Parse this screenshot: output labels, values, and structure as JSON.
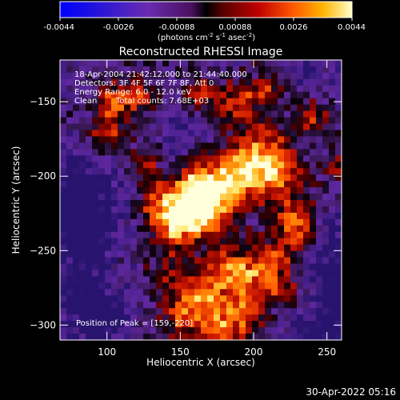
{
  "footer_timestamp": "30-Apr-2022 05:16",
  "chart_data": {
    "type": "heatmap",
    "title": "Reconstructed RHESSI Image",
    "xlabel": "Heliocentric X (arcsec)",
    "ylabel": "Heliocentric Y (arcsec)",
    "xlim": [
      68,
      260
    ],
    "ylim": [
      -310,
      -122
    ],
    "x_ticks": [
      100,
      150,
      200,
      250
    ],
    "y_ticks": [
      -150,
      -200,
      -250,
      -300
    ],
    "colorbar": {
      "min": -0.0044,
      "max": 0.0044,
      "tick_labels": [
        "-0.0044",
        "-0.0026",
        "-0.00088",
        "0.00088",
        "0.0026",
        "0.0044"
      ],
      "unit_parts": [
        "(photons cm",
        "-2",
        " s",
        "-1",
        " asec",
        "-2",
        ")"
      ]
    },
    "annotations": {
      "time_range": "18-Apr-2004 21:42:12.000 to 21:44:40.000",
      "detectors": "Detectors: 3F 4F 5F 6F 7F 8F, Att 0",
      "energy_range": "Energy Range: 6.0 - 12.0 keV",
      "clean_label": "Clean",
      "total_counts": "Total counts: 7.68E+03",
      "peak": "Position of Peak = [159,-220]"
    },
    "peak_position": [
      159,
      -220
    ],
    "grid": false
  }
}
